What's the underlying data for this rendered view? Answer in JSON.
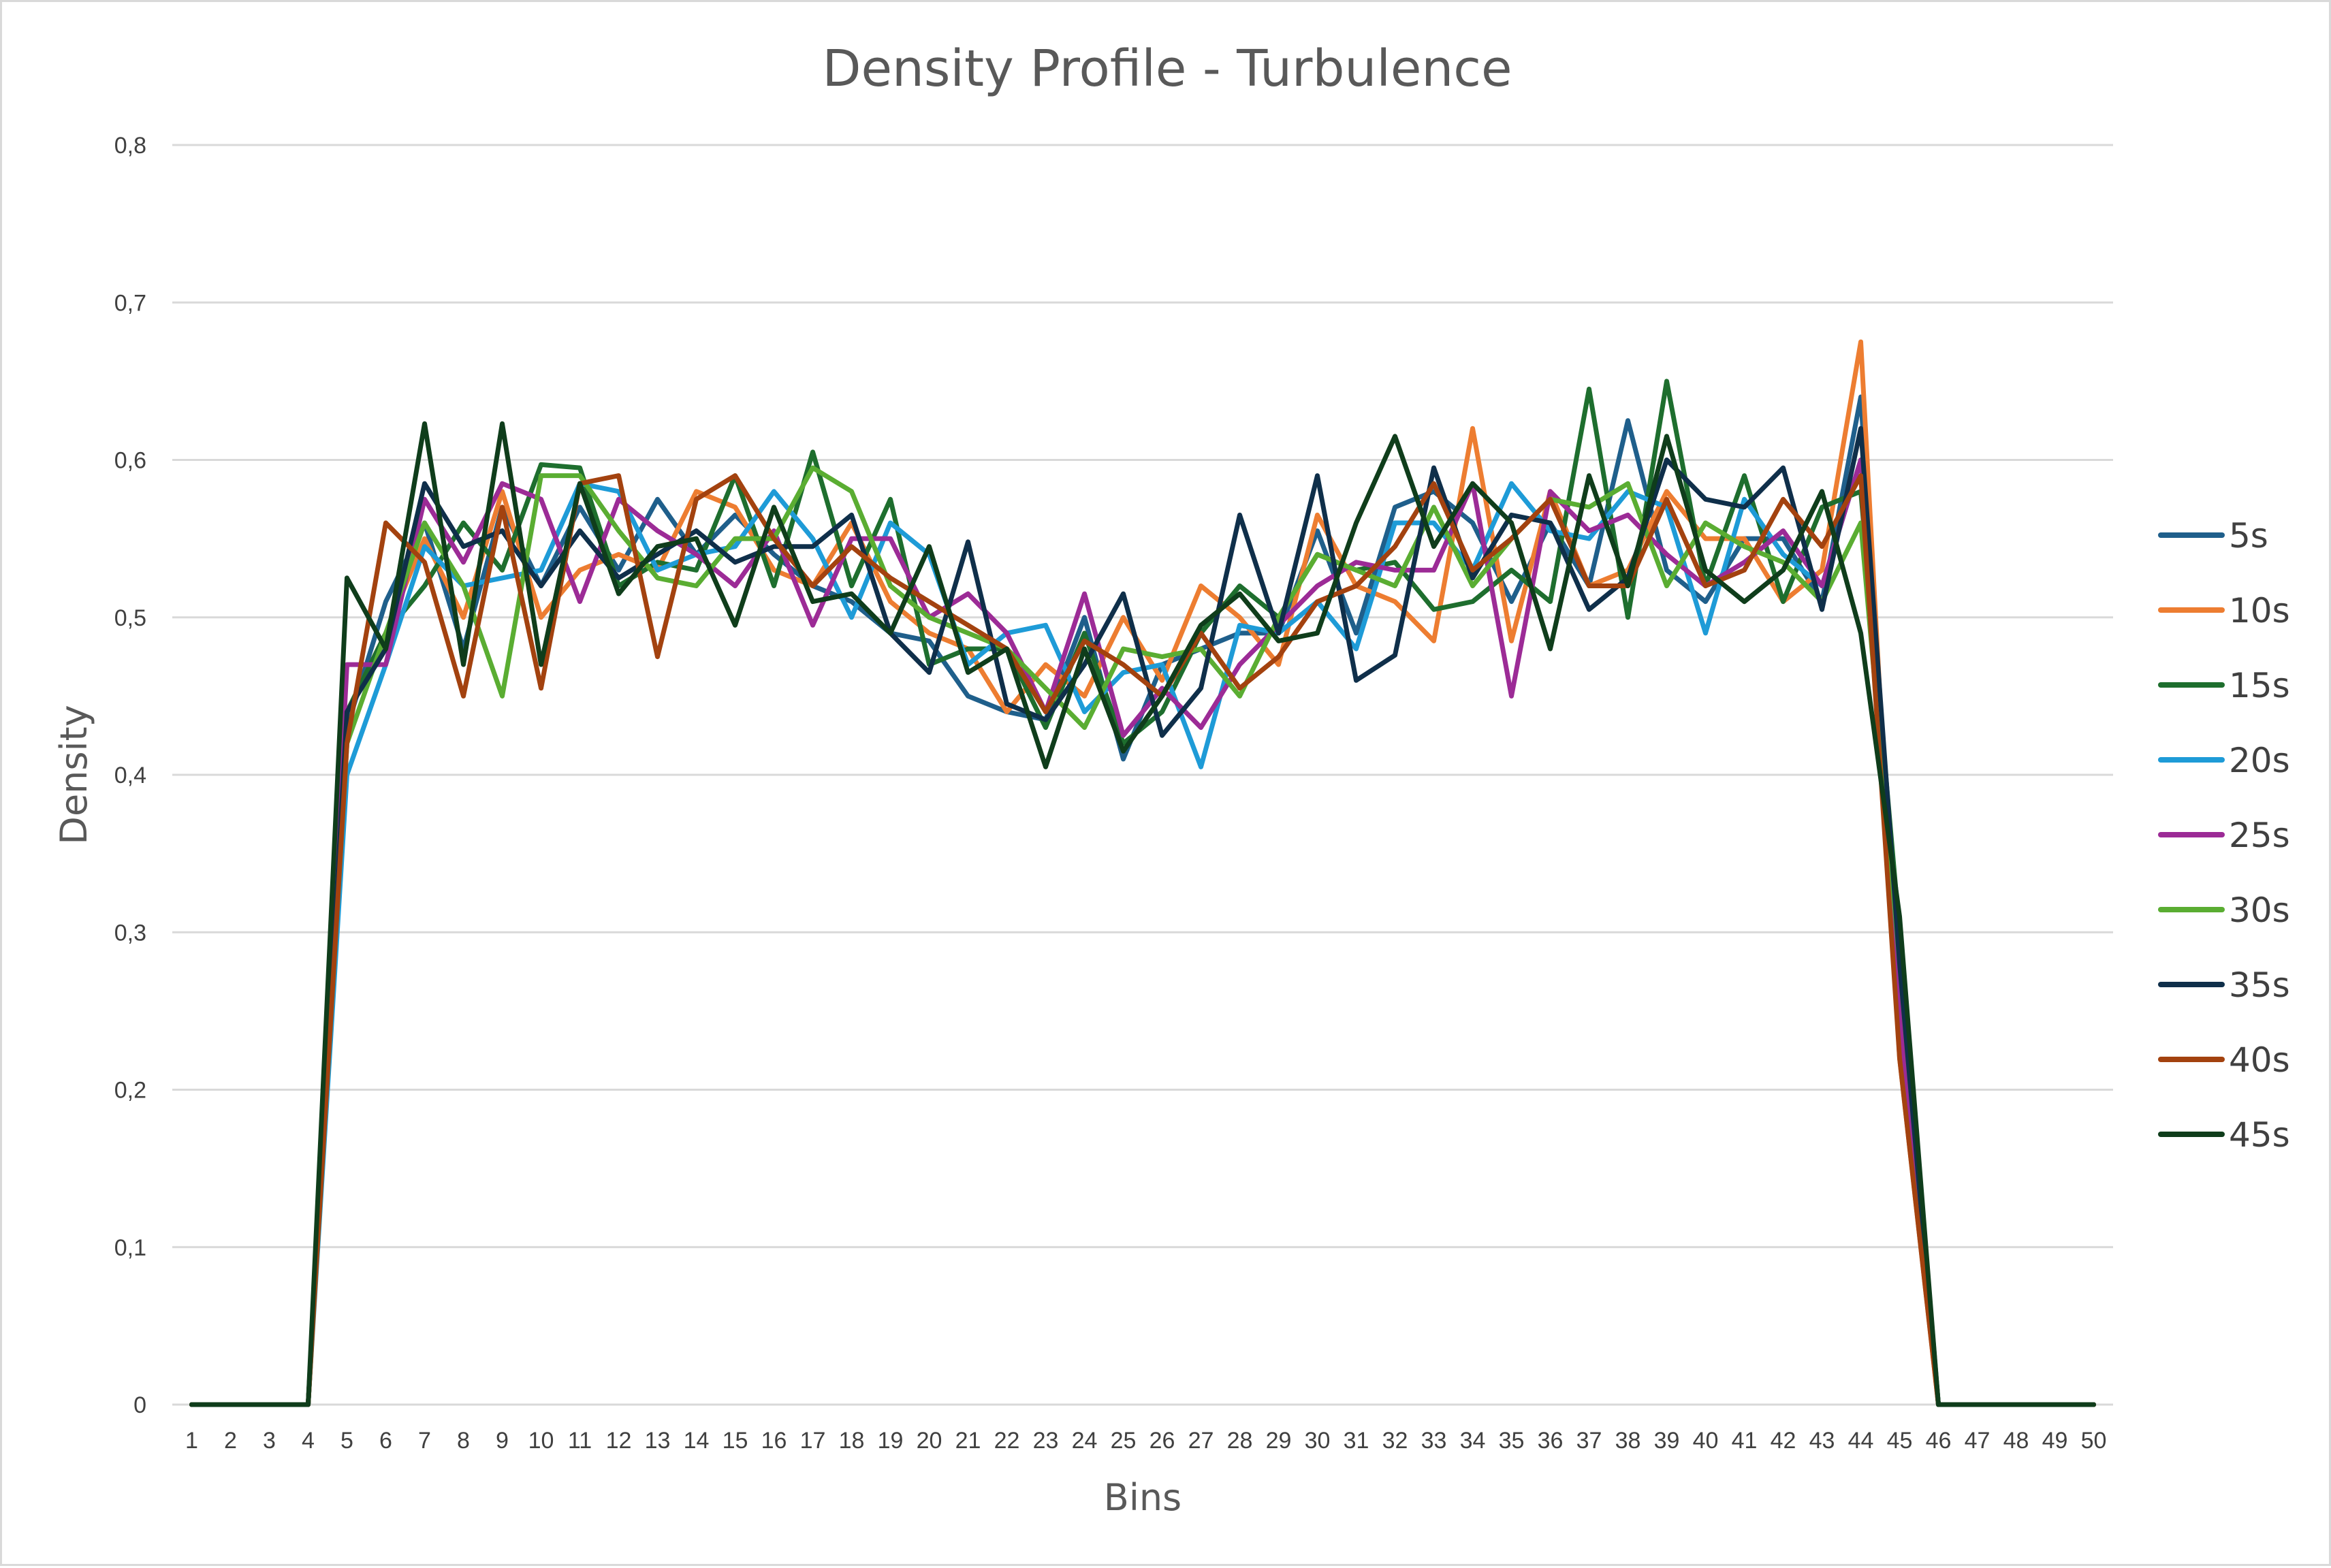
{
  "chart_data": {
    "type": "line",
    "title": "Density Profile - Turbulence",
    "xlabel": "Bins",
    "ylabel": "Density",
    "ylim": [
      0,
      0.8
    ],
    "yticks": [
      "0",
      "0,1",
      "0,2",
      "0,3",
      "0,4",
      "0,5",
      "0,6",
      "0,7",
      "0,8"
    ],
    "grid": true,
    "legend_position": "right",
    "categories": [
      "1",
      "2",
      "3",
      "4",
      "5",
      "6",
      "7",
      "8",
      "9",
      "10",
      "11",
      "12",
      "13",
      "14",
      "15",
      "16",
      "17",
      "18",
      "19",
      "20",
      "21",
      "22",
      "23",
      "24",
      "25",
      "26",
      "27",
      "28",
      "29",
      "30",
      "31",
      "32",
      "33",
      "34",
      "35",
      "36",
      "37",
      "38",
      "39",
      "40",
      "41",
      "42",
      "43",
      "44",
      "45",
      "46",
      "47",
      "48",
      "49",
      "50"
    ],
    "series": [
      {
        "name": "5s",
        "color": "#1f5f8b",
        "values": [
          0,
          0,
          0,
          0,
          0.43,
          0.51,
          0.56,
          0.48,
          0.57,
          0.52,
          0.57,
          0.53,
          0.575,
          0.54,
          0.565,
          0.54,
          0.52,
          0.51,
          0.49,
          0.485,
          0.45,
          0.44,
          0.435,
          0.5,
          0.41,
          0.47,
          0.48,
          0.49,
          0.49,
          0.555,
          0.49,
          0.57,
          0.58,
          0.56,
          0.51,
          0.56,
          0.52,
          0.625,
          0.53,
          0.51,
          0.55,
          0.55,
          0.51,
          0.64,
          0.25,
          0,
          0,
          0,
          0,
          0
        ]
      },
      {
        "name": "10s",
        "color": "#ed7d31",
        "values": [
          0,
          0,
          0,
          0,
          0.44,
          0.49,
          0.55,
          0.5,
          0.58,
          0.5,
          0.53,
          0.54,
          0.53,
          0.58,
          0.57,
          0.53,
          0.52,
          0.56,
          0.51,
          0.49,
          0.48,
          0.44,
          0.47,
          0.45,
          0.5,
          0.46,
          0.52,
          0.5,
          0.47,
          0.565,
          0.52,
          0.51,
          0.485,
          0.62,
          0.485,
          0.58,
          0.52,
          0.53,
          0.58,
          0.55,
          0.55,
          0.51,
          0.53,
          0.675,
          0.22,
          0,
          0,
          0,
          0,
          0
        ]
      },
      {
        "name": "15s",
        "color": "#1e6e2e",
        "values": [
          0,
          0,
          0,
          0,
          0.44,
          0.49,
          0.52,
          0.56,
          0.53,
          0.597,
          0.595,
          0.52,
          0.535,
          0.53,
          0.59,
          0.52,
          0.605,
          0.52,
          0.575,
          0.47,
          0.48,
          0.48,
          0.43,
          0.49,
          0.42,
          0.44,
          0.49,
          0.52,
          0.5,
          0.54,
          0.53,
          0.535,
          0.505,
          0.51,
          0.53,
          0.51,
          0.645,
          0.5,
          0.65,
          0.52,
          0.59,
          0.51,
          0.57,
          0.58,
          0.3,
          0,
          0,
          0,
          0,
          0
        ]
      },
      {
        "name": "20s",
        "color": "#1e9bd7",
        "values": [
          0,
          0,
          0,
          0,
          0.4,
          0.47,
          0.545,
          0.52,
          0.525,
          0.53,
          0.585,
          0.58,
          0.53,
          0.54,
          0.545,
          0.58,
          0.55,
          0.5,
          0.56,
          0.54,
          0.47,
          0.49,
          0.495,
          0.44,
          0.465,
          0.47,
          0.405,
          0.495,
          0.49,
          0.51,
          0.48,
          0.56,
          0.56,
          0.53,
          0.585,
          0.555,
          0.55,
          0.58,
          0.57,
          0.49,
          0.575,
          0.54,
          0.52,
          0.6,
          0.27,
          0,
          0,
          0,
          0,
          0
        ]
      },
      {
        "name": "25s",
        "color": "#9c2b96",
        "values": [
          0,
          0,
          0,
          0,
          0.47,
          0.47,
          0.575,
          0.535,
          0.585,
          0.575,
          0.51,
          0.575,
          0.555,
          0.54,
          0.52,
          0.555,
          0.495,
          0.55,
          0.55,
          0.5,
          0.515,
          0.49,
          0.44,
          0.515,
          0.425,
          0.455,
          0.43,
          0.47,
          0.495,
          0.52,
          0.535,
          0.53,
          0.53,
          0.585,
          0.45,
          0.58,
          0.555,
          0.565,
          0.54,
          0.52,
          0.535,
          0.555,
          0.52,
          0.6,
          0.25,
          0,
          0,
          0,
          0,
          0
        ]
      },
      {
        "name": "30s",
        "color": "#5aad32",
        "values": [
          0,
          0,
          0,
          0,
          0.42,
          0.49,
          0.56,
          0.52,
          0.45,
          0.59,
          0.59,
          0.555,
          0.525,
          0.52,
          0.55,
          0.55,
          0.595,
          0.58,
          0.52,
          0.5,
          0.49,
          0.48,
          0.455,
          0.43,
          0.48,
          0.475,
          0.48,
          0.45,
          0.5,
          0.54,
          0.53,
          0.52,
          0.57,
          0.52,
          0.55,
          0.575,
          0.57,
          0.585,
          0.52,
          0.56,
          0.545,
          0.535,
          0.51,
          0.56,
          0.28,
          0,
          0,
          0,
          0,
          0
        ]
      },
      {
        "name": "35s",
        "color": "#0f2f4a",
        "values": [
          0,
          0,
          0,
          0,
          0.44,
          0.48,
          0.585,
          0.545,
          0.555,
          0.52,
          0.555,
          0.525,
          0.54,
          0.555,
          0.535,
          0.545,
          0.545,
          0.565,
          0.49,
          0.465,
          0.548,
          0.445,
          0.435,
          0.47,
          0.515,
          0.425,
          0.455,
          0.565,
          0.49,
          0.59,
          0.46,
          0.476,
          0.595,
          0.525,
          0.565,
          0.56,
          0.505,
          0.525,
          0.6,
          0.575,
          0.57,
          0.595,
          0.505,
          0.62,
          0.28,
          0,
          0,
          0,
          0,
          0
        ]
      },
      {
        "name": "40s",
        "color": "#a3420f",
        "values": [
          0,
          0,
          0,
          0,
          0.42,
          0.56,
          0.535,
          0.45,
          0.57,
          0.455,
          0.585,
          0.59,
          0.475,
          0.575,
          0.59,
          0.55,
          0.52,
          0.545,
          0.525,
          0.51,
          0.495,
          0.48,
          0.44,
          0.485,
          0.47,
          0.45,
          0.49,
          0.455,
          0.475,
          0.51,
          0.52,
          0.545,
          0.585,
          0.53,
          0.55,
          0.575,
          0.52,
          0.52,
          0.575,
          0.52,
          0.53,
          0.575,
          0.545,
          0.59,
          0.22,
          0,
          0,
          0,
          0,
          0
        ]
      },
      {
        "name": "45s",
        "color": "#0f3d1b",
        "values": [
          0,
          0,
          0,
          0,
          0.525,
          0.48,
          0.623,
          0.47,
          0.623,
          0.47,
          0.585,
          0.515,
          0.545,
          0.55,
          0.495,
          0.57,
          0.51,
          0.515,
          0.49,
          0.545,
          0.465,
          0.48,
          0.405,
          0.48,
          0.415,
          0.45,
          0.495,
          0.515,
          0.485,
          0.49,
          0.56,
          0.615,
          0.545,
          0.585,
          0.56,
          0.48,
          0.59,
          0.52,
          0.615,
          0.53,
          0.51,
          0.53,
          0.58,
          0.49,
          0.31,
          0,
          0,
          0,
          0,
          0
        ]
      }
    ]
  }
}
